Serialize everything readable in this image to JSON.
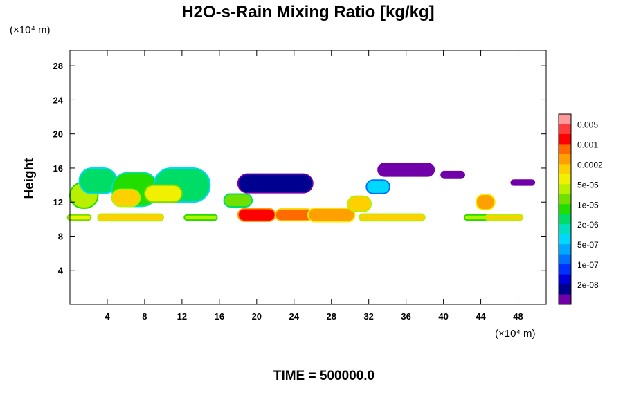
{
  "chart_data": {
    "type": "heatmap",
    "title": "H2O-s-Rain Mixing Ratio [kg/kg]",
    "xlabel": "",
    "ylabel": "Height",
    "x_unit": "(×10⁴ m)",
    "y_unit": "(×10⁴ m)",
    "xlim": [
      0,
      51
    ],
    "ylim": [
      0,
      29.8
    ],
    "xticks": [
      4,
      8,
      12,
      16,
      20,
      24,
      28,
      32,
      36,
      40,
      44,
      48
    ],
    "yticks": [
      4,
      8,
      12,
      16,
      20,
      24,
      28
    ],
    "footer": "TIME = 500000.0",
    "colorbar": {
      "labels": [
        "0.005",
        "0.001",
        "0.0002",
        "5e-05",
        "1e-05",
        "2e-06",
        "5e-07",
        "1e-07",
        "2e-08"
      ],
      "colors": [
        "#ff9a9a",
        "#ff3b3b",
        "#ff0000",
        "#ff6a00",
        "#ffa000",
        "#ffd000",
        "#f0f000",
        "#b8f000",
        "#70e000",
        "#22dd00",
        "#00dd66",
        "#00e0c0",
        "#00d8ff",
        "#00a8ff",
        "#0070ff",
        "#0030ff",
        "#0000d8",
        "#000090",
        "#7000a8"
      ]
    },
    "cells": [
      {
        "x": 1.5,
        "y": 12.8,
        "w": 3,
        "h": 3,
        "v": 7
      },
      {
        "x": 3,
        "y": 14.5,
        "w": 4,
        "h": 3,
        "v": 10
      },
      {
        "x": 7,
        "y": 13.5,
        "w": 5,
        "h": 4,
        "v": 9
      },
      {
        "x": 12,
        "y": 14,
        "w": 6,
        "h": 4,
        "v": 10
      },
      {
        "x": 10,
        "y": 13,
        "w": 4,
        "h": 2,
        "v": 6
      },
      {
        "x": 6,
        "y": 12.5,
        "w": 3,
        "h": 2,
        "v": 5
      },
      {
        "x": 18,
        "y": 12.2,
        "w": 3,
        "h": 1.5,
        "v": 8
      },
      {
        "x": 1,
        "y": 10.2,
        "w": 2.5,
        "h": 0.6,
        "v": 6
      },
      {
        "x": 6.5,
        "y": 10.2,
        "w": 7,
        "h": 0.8,
        "v": 5
      },
      {
        "x": 14,
        "y": 10.2,
        "w": 3.5,
        "h": 0.6,
        "v": 7
      },
      {
        "x": 20,
        "y": 10.5,
        "w": 4,
        "h": 1.5,
        "v": 2
      },
      {
        "x": 24,
        "y": 10.5,
        "w": 4,
        "h": 1.4,
        "v": 3
      },
      {
        "x": 28,
        "y": 10.5,
        "w": 5,
        "h": 1.6,
        "v": 4
      },
      {
        "x": 31,
        "y": 11.8,
        "w": 2.5,
        "h": 1.8,
        "v": 5
      },
      {
        "x": 34.5,
        "y": 10.2,
        "w": 7,
        "h": 0.8,
        "v": 5
      },
      {
        "x": 43.5,
        "y": 10.2,
        "w": 2.5,
        "h": 0.6,
        "v": 7
      },
      {
        "x": 44.5,
        "y": 12,
        "w": 2,
        "h": 1.8,
        "v": 4
      },
      {
        "x": 46.5,
        "y": 10.2,
        "w": 4,
        "h": 0.6,
        "v": 5
      },
      {
        "x": 33,
        "y": 13.8,
        "w": 2.5,
        "h": 1.6,
        "v": 12
      },
      {
        "x": 22,
        "y": 14.2,
        "w": 8,
        "h": 2.2,
        "v": 17
      },
      {
        "x": 36,
        "y": 15.8,
        "w": 6,
        "h": 1.5,
        "v": 18
      },
      {
        "x": 41,
        "y": 15.2,
        "w": 2.5,
        "h": 0.8,
        "v": 18
      },
      {
        "x": 48.5,
        "y": 14.3,
        "w": 2.5,
        "h": 0.6,
        "v": 18
      }
    ]
  }
}
